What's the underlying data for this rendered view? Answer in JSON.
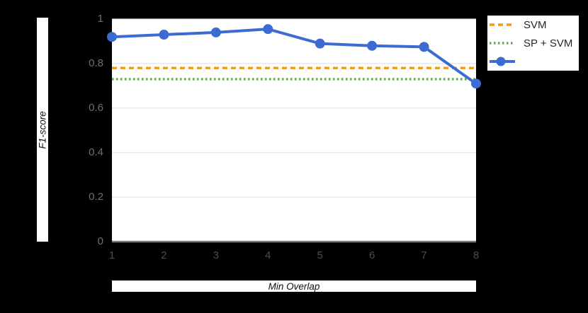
{
  "figure": {
    "background": "#000000",
    "plot_background": "#ffffff"
  },
  "chart_data": {
    "type": "line",
    "title": "",
    "xlabel": "Min Overlap",
    "ylabel": "F1-score",
    "x": [
      1,
      2,
      3,
      4,
      5,
      6,
      7,
      8
    ],
    "xtick_labels": [
      "1",
      "2",
      "3",
      "4",
      "5",
      "6",
      "7",
      "8"
    ],
    "xlim": [
      1,
      8
    ],
    "ylim": [
      0,
      1
    ],
    "yticks": [
      0,
      0.2,
      0.4,
      0.6,
      0.8,
      1
    ],
    "ytick_labels": [
      "0",
      "0.2",
      "0.4",
      "0.6",
      "0.8",
      "1"
    ],
    "grid": true,
    "series": [
      {
        "name": "",
        "values": [
          0.92,
          0.93,
          0.94,
          0.955,
          0.89,
          0.88,
          0.875,
          0.71
        ],
        "color": "#3c6cd2",
        "style": "solid-line-with-markers"
      }
    ],
    "baselines": [
      {
        "name": "SVM",
        "value": 0.78,
        "color": "#ff9900",
        "style": "dashed"
      },
      {
        "name": "SP + SVM",
        "value": 0.73,
        "color": "#6aa84f",
        "style": "dotted"
      }
    ],
    "legend": {
      "position": "top-right-outside",
      "entries": [
        {
          "label": "SVM",
          "swatch": "dashed",
          "color": "#ff9900"
        },
        {
          "label": "SP + SVM",
          "swatch": "dotted",
          "color": "#6aa84f"
        },
        {
          "label": "",
          "swatch": "line-marker",
          "color": "#3c6cd2"
        }
      ]
    }
  }
}
